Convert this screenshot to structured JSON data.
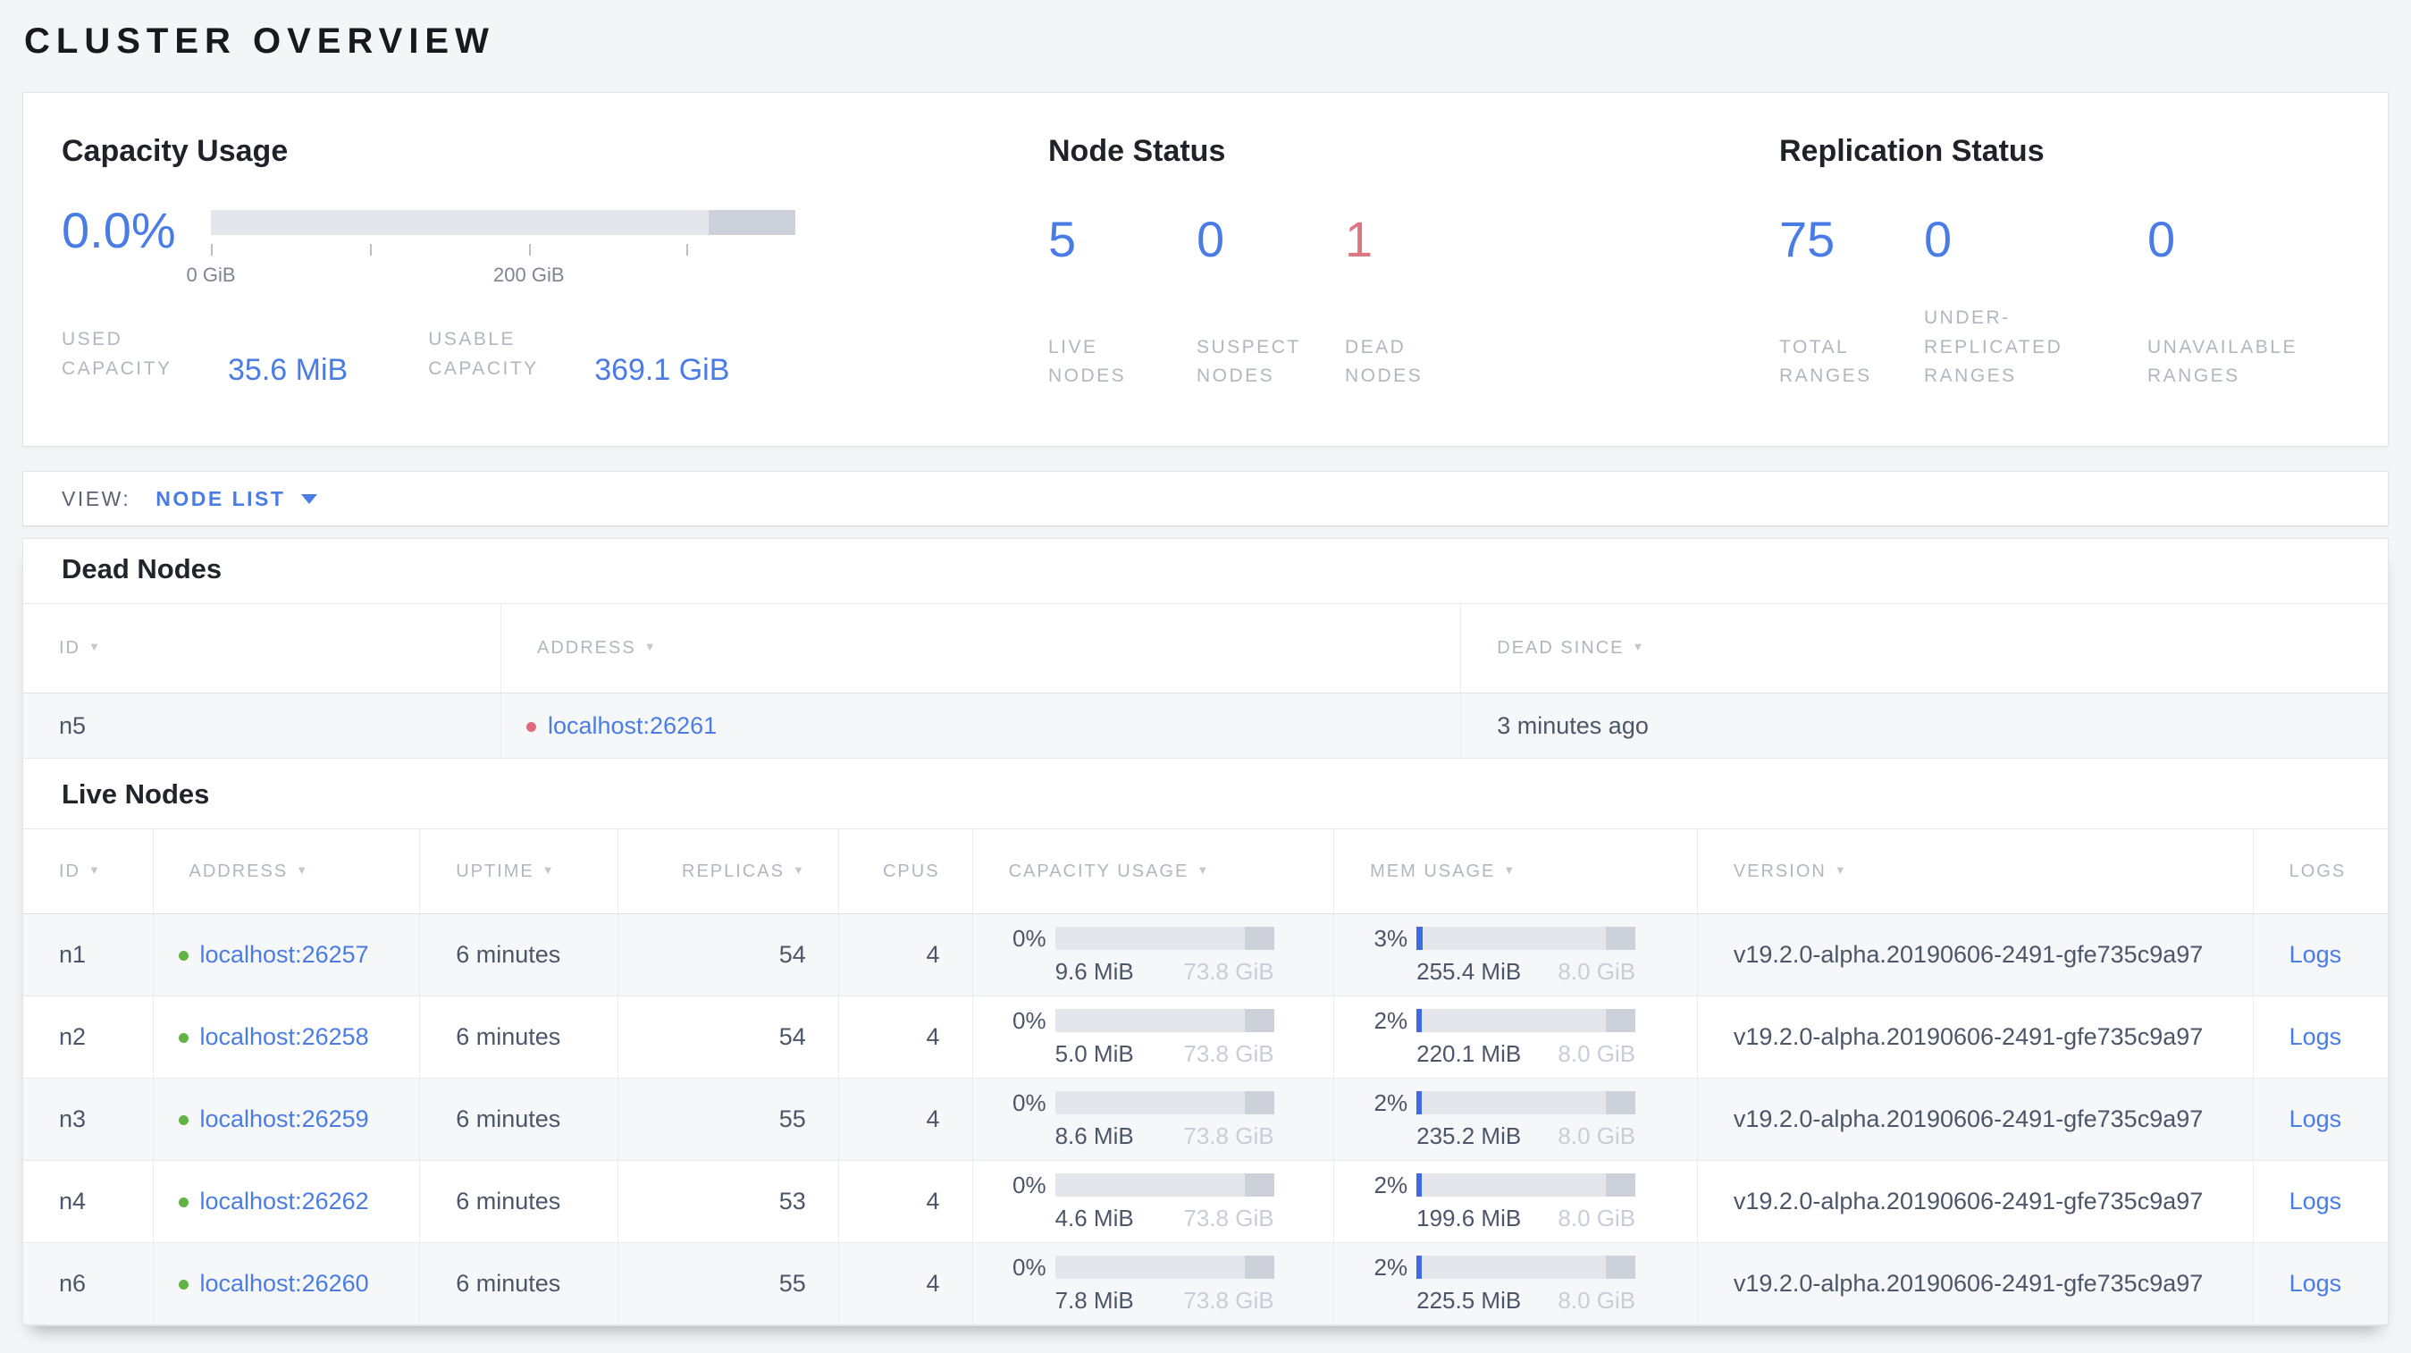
{
  "page_title": "CLUSTER OVERVIEW",
  "colors": {
    "accent_blue": "#4a7ce6",
    "danger_red": "#de7583",
    "live_dot_green": "#62b245",
    "dead_dot_red": "#e0697d",
    "bar_track_gray": "#e4e6ec",
    "bar_reserved_gray": "#cdd1da",
    "bar_fill_blue": "#3d6be2"
  },
  "summary": {
    "capacity": {
      "title": "Capacity Usage",
      "percent": "0.0%",
      "bar": {
        "light_fraction_pct": 85.2,
        "dark_fraction_pct": 14.8,
        "used_fill_pct": 0,
        "ticks": [
          {
            "pos": 0,
            "label": "0 GiB"
          },
          {
            "pos": 27.2,
            "label": ""
          },
          {
            "pos": 54.4,
            "label": "200 GiB"
          },
          {
            "pos": 81.4,
            "label": ""
          }
        ]
      },
      "stats": [
        {
          "label": "USED CAPACITY",
          "value": "35.6 MiB"
        },
        {
          "label": "USABLE CAPACITY",
          "value": "369.1 GiB"
        }
      ]
    },
    "node_status": {
      "title": "Node Status",
      "items": [
        {
          "value": "5",
          "label": "LIVE NODES",
          "color": "#4a7ce6"
        },
        {
          "value": "0",
          "label": "SUSPECT NODES",
          "color": "#4a7ce6"
        },
        {
          "value": "1",
          "label": "DEAD NODES",
          "color": "#de7583"
        }
      ]
    },
    "replication": {
      "title": "Replication Status",
      "items": [
        {
          "value": "75",
          "label": "TOTAL RANGES",
          "color": "#4a7ce6"
        },
        {
          "value": "0",
          "label": "UNDER-REPLICATED RANGES",
          "color": "#4a7ce6"
        },
        {
          "value": "0",
          "label": "UNAVAILABLE RANGES",
          "color": "#4a7ce6"
        }
      ]
    }
  },
  "view_bar": {
    "label": "VIEW:",
    "selected": "NODE LIST"
  },
  "dead_nodes": {
    "title": "Dead Nodes",
    "columns": [
      {
        "label": "ID",
        "width": "20.2%",
        "sortable": true
      },
      {
        "label": "ADDRESS",
        "width": "40.6%",
        "sortable": true
      },
      {
        "label": "DEAD SINCE",
        "width": "39.2%",
        "sortable": true
      }
    ],
    "rows": [
      {
        "id": "n5",
        "address": "localhost:26261",
        "dead_since": "3 minutes ago"
      }
    ]
  },
  "live_nodes": {
    "title": "Live Nodes",
    "logs_label": "Logs",
    "columns": [
      {
        "label": "ID",
        "width": "5.48%",
        "sortable": true
      },
      {
        "label": "ADDRESS",
        "width": "11.29%",
        "sortable": true
      },
      {
        "label": "UPTIME",
        "width": "8.38%",
        "sortable": true
      },
      {
        "label": "REPLICAS",
        "width": "9.33%",
        "sortable": true,
        "align": "right"
      },
      {
        "label": "CPUS",
        "width": "5.66%",
        "sortable": false,
        "align": "right"
      },
      {
        "label": "CAPACITY USAGE",
        "width": "15.29%",
        "sortable": true
      },
      {
        "label": "MEM USAGE",
        "width": "15.37%",
        "sortable": true
      },
      {
        "label": "VERSION",
        "width": "23.5%",
        "sortable": true
      },
      {
        "label": "LOGS",
        "width": "5.7%",
        "sortable": false
      }
    ],
    "rows": [
      {
        "id": "n1",
        "address": "localhost:26257",
        "uptime": "6 minutes",
        "replicas": "54",
        "cpus": "4",
        "capacity": {
          "percent": "0%",
          "used": "9.6 MiB",
          "total": "73.8 GiB",
          "fill_pct": 0
        },
        "memory": {
          "percent": "3%",
          "used": "255.4 MiB",
          "total": "8.0 GiB",
          "fill_pct": 3
        },
        "version": "v19.2.0-alpha.20190606-2491-gfe735c9a97"
      },
      {
        "id": "n2",
        "address": "localhost:26258",
        "uptime": "6 minutes",
        "replicas": "54",
        "cpus": "4",
        "capacity": {
          "percent": "0%",
          "used": "5.0 MiB",
          "total": "73.8 GiB",
          "fill_pct": 0
        },
        "memory": {
          "percent": "2%",
          "used": "220.1 MiB",
          "total": "8.0 GiB",
          "fill_pct": 2.5
        },
        "version": "v19.2.0-alpha.20190606-2491-gfe735c9a97"
      },
      {
        "id": "n3",
        "address": "localhost:26259",
        "uptime": "6 minutes",
        "replicas": "55",
        "cpus": "4",
        "capacity": {
          "percent": "0%",
          "used": "8.6 MiB",
          "total": "73.8 GiB",
          "fill_pct": 0
        },
        "memory": {
          "percent": "2%",
          "used": "235.2 MiB",
          "total": "8.0 GiB",
          "fill_pct": 2.5
        },
        "version": "v19.2.0-alpha.20190606-2491-gfe735c9a97"
      },
      {
        "id": "n4",
        "address": "localhost:26262",
        "uptime": "6 minutes",
        "replicas": "53",
        "cpus": "4",
        "capacity": {
          "percent": "0%",
          "used": "4.6 MiB",
          "total": "73.8 GiB",
          "fill_pct": 0
        },
        "memory": {
          "percent": "2%",
          "used": "199.6 MiB",
          "total": "8.0 GiB",
          "fill_pct": 2.5
        },
        "version": "v19.2.0-alpha.20190606-2491-gfe735c9a97"
      },
      {
        "id": "n6",
        "address": "localhost:26260",
        "uptime": "6 minutes",
        "replicas": "55",
        "cpus": "4",
        "capacity": {
          "percent": "0%",
          "used": "7.8 MiB",
          "total": "73.8 GiB",
          "fill_pct": 0
        },
        "memory": {
          "percent": "2%",
          "used": "225.5 MiB",
          "total": "8.0 GiB",
          "fill_pct": 2.5
        },
        "version": "v19.2.0-alpha.20190606-2491-gfe735c9a97"
      }
    ]
  }
}
